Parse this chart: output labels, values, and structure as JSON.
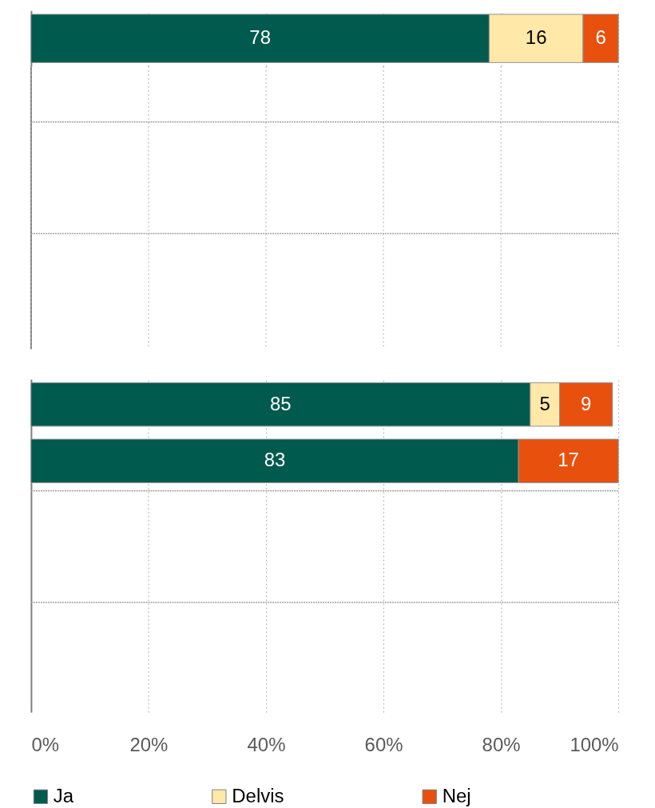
{
  "chart_data": [
    {
      "type": "bar",
      "orientation": "horizontal",
      "stacked": true,
      "data_labels": true,
      "grid": true,
      "legend": false,
      "tick_labels": false,
      "categories": [
        null
      ],
      "xlim": [
        0,
        100
      ],
      "xticks": [
        0,
        20,
        40,
        60,
        80,
        100
      ],
      "series": [
        {
          "color": "#005a4e",
          "values": [
            78
          ]
        },
        {
          "color": "#ffe8a8",
          "values": [
            16
          ]
        },
        {
          "color": "#e8500e",
          "values": [
            6
          ]
        }
      ]
    },
    {
      "type": "bar",
      "orientation": "horizontal",
      "stacked": true,
      "data_labels": true,
      "grid": true,
      "legend": "bottom",
      "tick_labels": "x",
      "categories": [
        null,
        null,
        null,
        null,
        null,
        null
      ],
      "xlim": [
        0,
        100
      ],
      "xticks": [
        {
          "value": 0,
          "label": "0%"
        },
        {
          "value": 20,
          "label": "20%"
        },
        {
          "value": 40,
          "label": "40%"
        },
        {
          "value": 60,
          "label": "60%"
        },
        {
          "value": 80,
          "label": "80%"
        },
        {
          "value": 100,
          "label": "100%"
        }
      ],
      "series": [
        {
          "name": "Ja",
          "color": "#005a4e",
          "values": [
            85,
            83,
            null,
            null,
            null,
            null
          ]
        },
        {
          "name": "Delvis",
          "color": "#ffe8a8",
          "values": [
            5,
            null,
            null,
            null,
            null,
            null
          ]
        },
        {
          "name": "Nej",
          "color": "#e8500e",
          "values": [
            9,
            17,
            null,
            null,
            null,
            null
          ]
        }
      ]
    }
  ]
}
